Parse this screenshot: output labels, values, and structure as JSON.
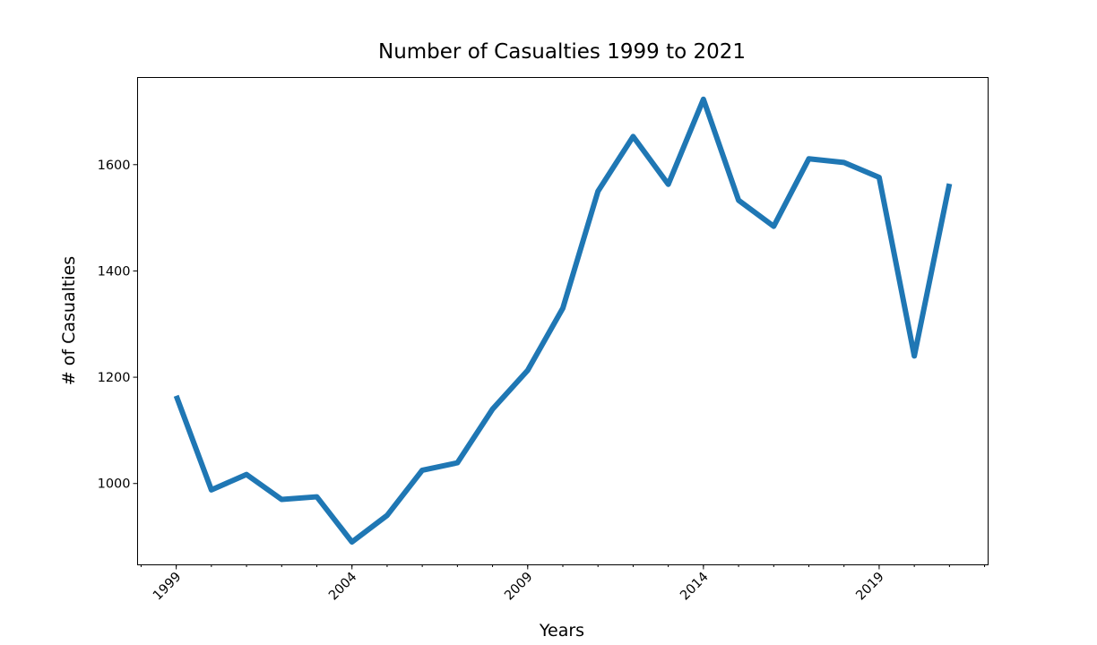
{
  "chart_data": {
    "type": "line",
    "title": "Number of Casualties 1999 to 2021",
    "xlabel": "Years",
    "ylabel": "# of Casualties",
    "x": [
      1999,
      2000,
      2001,
      2002,
      2003,
      2004,
      2005,
      2006,
      2007,
      2008,
      2009,
      2010,
      2011,
      2012,
      2013,
      2014,
      2015,
      2016,
      2017,
      2018,
      2019,
      2020,
      2021
    ],
    "series": [
      {
        "color": "#1f77b4",
        "values": [
          1165,
          988,
          1017,
          970,
          975,
          890,
          940,
          1025,
          1039,
          1140,
          1213,
          1330,
          1550,
          1653,
          1563,
          1723,
          1533,
          1484,
          1611,
          1604,
          1576,
          1240,
          1564
        ]
      }
    ],
    "xlim": [
      1997.9,
      2022.1
    ],
    "ylim": [
      847,
      1764
    ],
    "x_ticks": [
      "1999",
      "2004",
      "2009",
      "2014",
      "2019"
    ],
    "x_minor_ticks": [
      1998,
      1999,
      2000,
      2001,
      2002,
      2003,
      2004,
      2005,
      2006,
      2007,
      2008,
      2009,
      2010,
      2011,
      2012,
      2013,
      2014,
      2015,
      2016,
      2017,
      2018,
      2019,
      2020,
      2021,
      2022
    ],
    "y_ticks": [
      "1000",
      "1200",
      "1400",
      "1600"
    ],
    "grid": false,
    "legend": "none"
  }
}
